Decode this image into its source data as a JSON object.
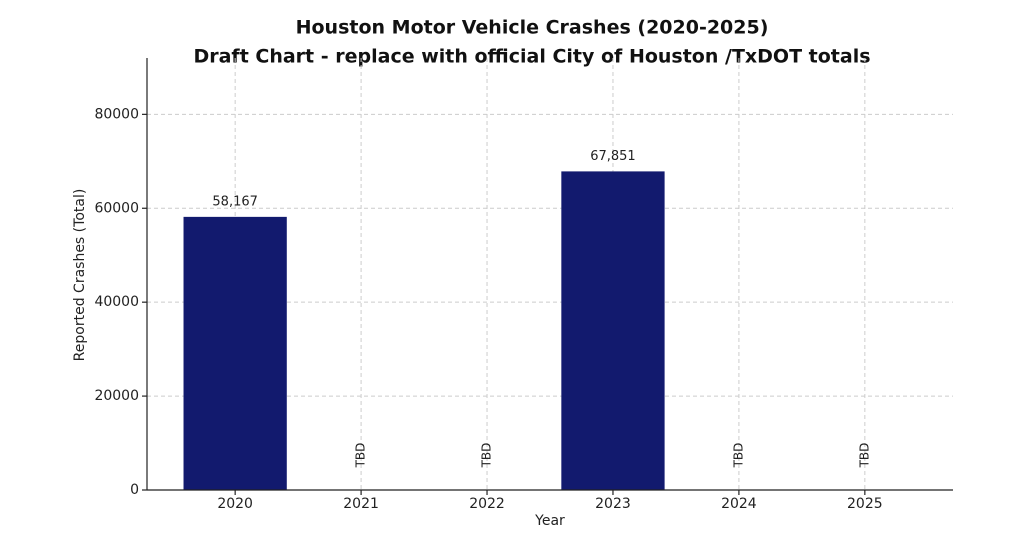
{
  "chart_data": {
    "type": "bar",
    "title": "Houston Motor Vehicle Crashes (2020-2025)",
    "subtitle": "Draft Chart - replace with official City of Houston /TxDOT totals",
    "x_label": "Year",
    "y_label": "Reported Crashes (Total)",
    "categories": [
      "2020",
      "2021",
      "2022",
      "2023",
      "2024",
      "2025"
    ],
    "values": [
      58167,
      null,
      null,
      67851,
      null,
      null
    ],
    "value_labels": [
      "58,167",
      "TBD",
      "TBD",
      "67,851",
      "TBD",
      "TBD"
    ],
    "color": "#121a6e",
    "ylim": [
      0,
      92000
    ],
    "yticks": [
      0,
      20000,
      40000,
      60000,
      80000
    ],
    "grid": true
  }
}
